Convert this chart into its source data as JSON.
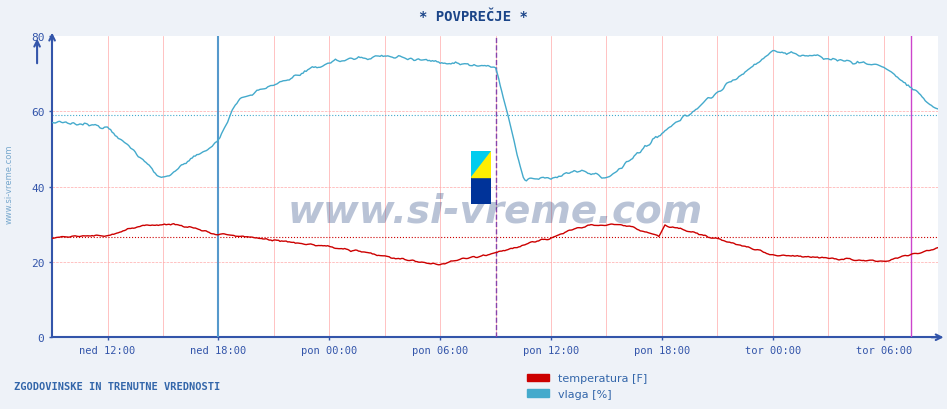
{
  "title": "* POVPREČJE *",
  "background_color": "#eef2f8",
  "plot_bg_color": "#ffffff",
  "ylim": [
    0,
    80
  ],
  "yticks": [
    0,
    20,
    40,
    60,
    80
  ],
  "x_labels": [
    "ned 12:00",
    "ned 18:00",
    "pon 00:00",
    "pon 06:00",
    "pon 12:00",
    "pon 18:00",
    "tor 00:00",
    "tor 06:00"
  ],
  "n_points": 576,
  "temp_color": "#cc0000",
  "vlaga_color": "#44aacc",
  "temp_avg_line": 26.5,
  "vlaga_avg_line": 59.0,
  "watermark": "www.si-vreme.com",
  "legend_label1": "temperatura [F]",
  "legend_label2": "vlaga [%]",
  "bottom_label": "ZGODOVINSKE IN TRENUTNE VREDNOSTI",
  "axis_color": "#3355aa",
  "title_color": "#1a4488",
  "label_color": "#3366aa",
  "grid_red": "#ffaaaa",
  "grid_blue": "#aaccee",
  "spine_color": "#3355aa"
}
